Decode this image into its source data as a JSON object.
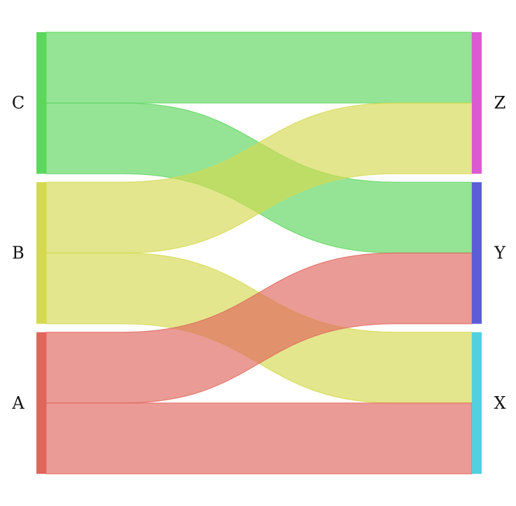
{
  "chart_data": {
    "type": "sankey",
    "title": "",
    "sources": [
      {
        "name": "C",
        "color": "#5cd65c"
      },
      {
        "name": "B",
        "color": "#d4d94f"
      },
      {
        "name": "A",
        "color": "#e0665c"
      }
    ],
    "targets": [
      {
        "name": "Z",
        "color": "#db5ad1"
      },
      {
        "name": "Y",
        "color": "#5c5cd6"
      },
      {
        "name": "X",
        "color": "#52d0e0"
      }
    ],
    "flows": [
      {
        "source": "C",
        "target": "Z",
        "value": 1
      },
      {
        "source": "C",
        "target": "Y",
        "value": 1
      },
      {
        "source": "B",
        "target": "Z",
        "value": 1
      },
      {
        "source": "B",
        "target": "X",
        "value": 1
      },
      {
        "source": "A",
        "target": "Y",
        "value": 1
      },
      {
        "source": "A",
        "target": "X",
        "value": 1
      }
    ]
  }
}
